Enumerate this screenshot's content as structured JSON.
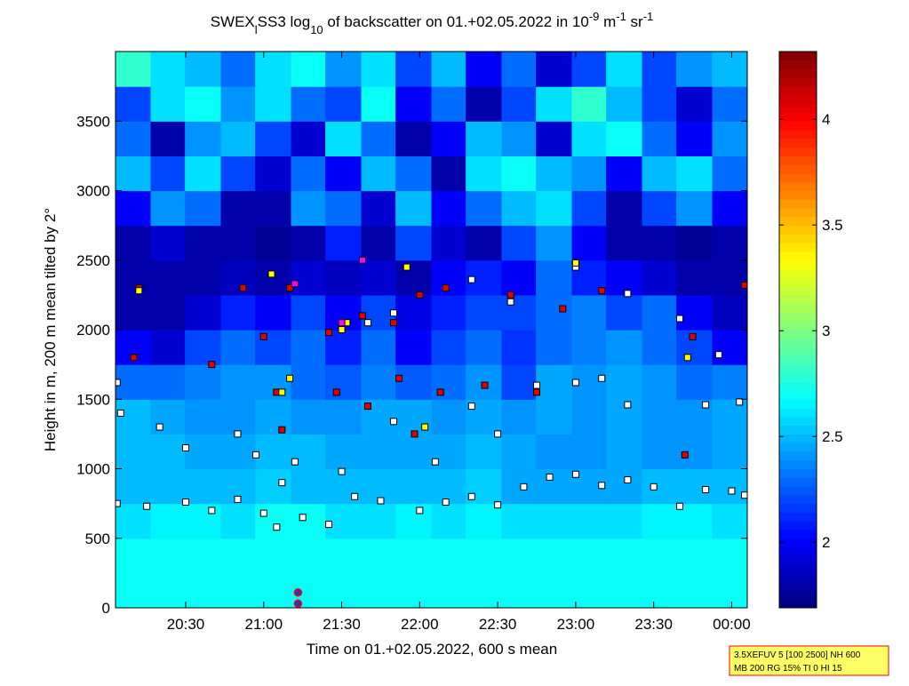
{
  "chart_data": {
    "type": "heatmap",
    "title": [
      {
        "text": "SWEX"
      },
      {
        "text": "l",
        "shift": "sub"
      },
      {
        "text": "SS3 log"
      },
      {
        "text": "10",
        "shift": "sub"
      },
      {
        "text": " of backscatter on 01.+02.05.2022 in 10"
      },
      {
        "text": "-9",
        "shift": "sup"
      },
      {
        "text": " m"
      },
      {
        "text": "-1",
        "shift": "sup"
      },
      {
        "text": " sr"
      },
      {
        "text": "-1",
        "shift": "sup"
      }
    ],
    "xlabel": "Time on 01.+02.05.2022, 600 s mean",
    "ylabel": "Height in m, 200 m mean tilted by 2°",
    "xlim": [
      20.05,
      24.1
    ],
    "ylim": [
      0,
      4000
    ],
    "xticks": [
      {
        "value": 20.5,
        "label": "20:30"
      },
      {
        "value": 21,
        "label": "21:00"
      },
      {
        "value": 21.5,
        "label": "21:30"
      },
      {
        "value": 22,
        "label": "22:00"
      },
      {
        "value": 22.5,
        "label": "22:30"
      },
      {
        "value": 23,
        "label": "23:00"
      },
      {
        "value": 23.5,
        "label": "23:30"
      },
      {
        "value": 24,
        "label": "00:00"
      }
    ],
    "yticks": [
      0,
      500,
      1000,
      1500,
      2000,
      2500,
      3000,
      3500
    ],
    "colormap": "jet",
    "clim": [
      1.69,
      4.32
    ],
    "cticks": [
      2,
      2.5,
      3,
      3.5,
      4
    ],
    "heatmap": {
      "x": [
        20.16,
        20.39,
        20.61,
        20.84,
        21.06,
        21.29,
        21.51,
        21.74,
        21.96,
        22.19,
        22.41,
        22.64,
        22.86,
        23.09,
        23.31,
        23.54,
        23.76,
        23.99
      ],
      "y": [
        125,
        375,
        625,
        875,
        1125,
        1375,
        1625,
        1875,
        2125,
        2375,
        2625,
        2875,
        3125,
        3375,
        3625,
        3875
      ],
      "z": [
        [
          2.7,
          2.7,
          2.7,
          2.7,
          2.7,
          2.7,
          2.7,
          2.7,
          2.7,
          2.7,
          2.7,
          2.7,
          2.7,
          2.7,
          2.7,
          2.7,
          2.7,
          2.7
        ],
        [
          2.7,
          2.7,
          2.7,
          2.7,
          2.7,
          2.7,
          2.7,
          2.7,
          2.7,
          2.7,
          2.7,
          2.7,
          2.7,
          2.7,
          2.7,
          2.7,
          2.7,
          2.7
        ],
        [
          2.6,
          2.65,
          2.65,
          2.6,
          2.7,
          2.7,
          2.6,
          2.6,
          2.65,
          2.6,
          2.65,
          2.6,
          2.6,
          2.6,
          2.6,
          2.65,
          2.65,
          2.6
        ],
        [
          2.5,
          2.5,
          2.5,
          2.5,
          2.55,
          2.5,
          2.5,
          2.5,
          2.5,
          2.5,
          2.55,
          2.45,
          2.45,
          2.45,
          2.45,
          2.5,
          2.5,
          2.5
        ],
        [
          2.5,
          2.5,
          2.45,
          2.45,
          2.5,
          2.5,
          2.45,
          2.45,
          2.45,
          2.45,
          2.5,
          2.45,
          2.4,
          2.4,
          2.45,
          2.4,
          2.4,
          2.45
        ],
        [
          2.5,
          2.45,
          2.4,
          2.4,
          2.45,
          2.4,
          2.4,
          2.45,
          2.45,
          2.4,
          2.45,
          2.4,
          2.45,
          2.4,
          2.45,
          2.4,
          2.4,
          2.45
        ],
        [
          2.3,
          2.3,
          2.35,
          2.4,
          2.4,
          2.3,
          2.25,
          2.35,
          2.25,
          2.3,
          2.4,
          2.2,
          2.45,
          2.4,
          2.45,
          2.4,
          2.3,
          2.35
        ],
        [
          2.0,
          1.9,
          2.2,
          2.3,
          2.2,
          2.3,
          2.1,
          2.3,
          2.0,
          2.2,
          2.3,
          2.15,
          2.3,
          2.35,
          2.4,
          2.3,
          2.2,
          2.0
        ],
        [
          1.8,
          1.8,
          1.9,
          2.1,
          2.0,
          2.2,
          2.0,
          2.2,
          1.95,
          2.1,
          2.2,
          2.2,
          2.3,
          2.35,
          2.2,
          2.3,
          2.0,
          1.85
        ],
        [
          1.8,
          1.8,
          1.8,
          1.85,
          1.8,
          1.9,
          1.85,
          1.9,
          1.8,
          2.0,
          2.1,
          2.0,
          2.3,
          2.1,
          2.0,
          1.9,
          1.8,
          1.8
        ],
        [
          1.8,
          1.9,
          1.8,
          1.8,
          1.75,
          1.8,
          2.1,
          1.8,
          2.2,
          1.9,
          1.8,
          2.2,
          2.4,
          2.0,
          1.8,
          1.8,
          1.75,
          1.8
        ],
        [
          2.0,
          2.4,
          2.3,
          1.8,
          1.8,
          2.4,
          2.3,
          1.9,
          2.5,
          2.0,
          2.3,
          2.5,
          2.6,
          2.2,
          1.8,
          2.2,
          2.4,
          2.0
        ],
        [
          2.5,
          2.2,
          2.6,
          2.2,
          1.9,
          2.3,
          2.0,
          2.5,
          2.3,
          1.8,
          2.6,
          2.7,
          2.5,
          2.4,
          2.0,
          2.5,
          2.6,
          2.3
        ],
        [
          2.3,
          1.8,
          2.4,
          2.5,
          2.2,
          1.9,
          2.6,
          2.3,
          1.8,
          2.0,
          2.5,
          2.4,
          1.9,
          2.6,
          2.7,
          2.3,
          2.0,
          2.4
        ],
        [
          2.2,
          2.6,
          2.7,
          2.4,
          2.6,
          2.3,
          2.2,
          2.7,
          2.0,
          2.3,
          1.8,
          2.2,
          2.6,
          2.8,
          2.5,
          2.2,
          1.9,
          2.3
        ],
        [
          2.8,
          2.6,
          2.5,
          2.3,
          2.6,
          2.7,
          2.4,
          2.6,
          2.2,
          2.5,
          2.0,
          2.3,
          1.9,
          2.2,
          2.6,
          2.2,
          2.4,
          2.5
        ]
      ]
    },
    "series": [
      {
        "color": "#ffffff",
        "marker": "square",
        "x": [
          20.06,
          20.25,
          20.5,
          20.667,
          20.833,
          21,
          21.083,
          21.25,
          21.417,
          21.583,
          21.75,
          22,
          22.167,
          22.333,
          22.5,
          22.667,
          22.833,
          23,
          23.167,
          23.333,
          23.5,
          23.667,
          23.833,
          24,
          24.083,
          20.06,
          20.083,
          20.333,
          20.5,
          20.833,
          20.95,
          21.117,
          21.2,
          21.5,
          21.833,
          22.1,
          22.333,
          22.5,
          22.75,
          23,
          23.167,
          23.333,
          23.833,
          24.05,
          22.583,
          23,
          23.333,
          23.667,
          23.917,
          22.333,
          21.667,
          21.833
        ],
        "values": [
          750,
          730,
          760,
          700,
          780,
          680,
          580,
          650,
          600,
          800,
          770,
          700,
          760,
          800,
          740,
          870,
          940,
          960,
          880,
          920,
          870,
          730,
          850,
          840,
          810,
          1620,
          1400,
          1300,
          1150,
          1250,
          1100,
          900,
          1050,
          980,
          1340,
          1050,
          1450,
          1250,
          1600,
          1620,
          1650,
          1460,
          1460,
          1480,
          2200,
          2450,
          2260,
          2080,
          1820,
          2360,
          2050,
          2120
        ]
      },
      {
        "color": "#e00000",
        "marker": "square",
        "x": [
          20.167,
          20.2,
          20.667,
          20.867,
          21,
          21.083,
          21.117,
          21.167,
          21.417,
          21.467,
          21.633,
          21.667,
          21.833,
          21.867,
          21.967,
          22,
          22.133,
          22.167,
          22.417,
          22.583,
          22.75,
          22.917,
          23.167,
          23.75,
          23.7,
          24.083
        ],
        "values": [
          1800,
          2300,
          1750,
          2300,
          1950,
          1550,
          1280,
          2300,
          1980,
          1550,
          2100,
          1450,
          2050,
          1650,
          1250,
          2250,
          1550,
          2300,
          1600,
          2250,
          1550,
          2150,
          2280,
          1950,
          1100,
          2320
        ]
      },
      {
        "color": "#ffff00",
        "marker": "square",
        "x": [
          20.2,
          21.117,
          21.05,
          21.533,
          21.917,
          22.033,
          21.5,
          23.717,
          23,
          21.167
        ],
        "values": [
          2280,
          1550,
          2400,
          2050,
          2450,
          1300,
          2000,
          1800,
          2480,
          1650
        ]
      },
      {
        "color": "#ff00ff",
        "marker": "square",
        "x": [
          21.633,
          21.2,
          21.5
        ],
        "values": [
          2500,
          2330,
          2050
        ]
      },
      {
        "color": "#3030c0",
        "edge": "#ff0000",
        "marker": "circle",
        "x": [
          21.22,
          21.22
        ],
        "values": [
          30,
          110
        ]
      }
    ],
    "info_box": [
      "3.5XEFUV 5 [100 2500] NH 600",
      "MB 200 RG 15% TI 0 HI 15"
    ]
  }
}
